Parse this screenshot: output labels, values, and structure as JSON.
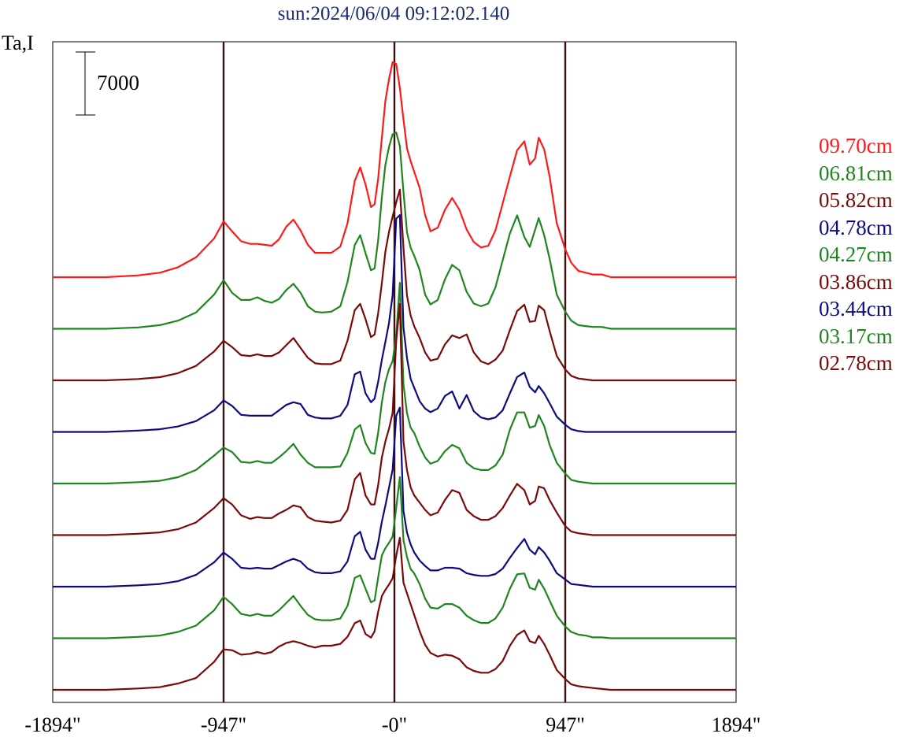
{
  "title": "sun:2024/06/04 09:12:02.140",
  "ylabel": "Ta,I",
  "scale_bar_label": "7000",
  "x_tick_labels": [
    "-1894\"",
    "-947\"",
    "-0\"",
    "947\"",
    "1894\""
  ],
  "colors": {
    "red": "#ff1a1a",
    "green": "#1f861f",
    "maroon": "#7a0a0a",
    "navy": "#0c0c80",
    "vline": "#3b1010",
    "frame": "#000000"
  },
  "chart_data": {
    "type": "line",
    "title": "sun:2024/06/04 09:12:02.140",
    "ylabel": "Ta,I",
    "xlim": [
      -1894,
      1894
    ],
    "x_ticks": [
      -1894,
      -947,
      0,
      947,
      1894
    ],
    "vertical_lines": [
      -947,
      0,
      947
    ],
    "scale_bar": 7000,
    "grid": false,
    "legend_position": "right",
    "x": [
      -1894,
      -1600,
      -1420,
      -1300,
      -1200,
      -1100,
      -1000,
      -947,
      -900,
      -850,
      -800,
      -760,
      -720,
      -680,
      -640,
      -600,
      -560,
      -520,
      -480,
      -440,
      -400,
      -350,
      -300,
      -260,
      -220,
      -190,
      -160,
      -130,
      -110,
      -90,
      -70,
      -50,
      -30,
      -10,
      10,
      30,
      50,
      70,
      90,
      110,
      140,
      170,
      200,
      240,
      280,
      320,
      360,
      400,
      440,
      480,
      520,
      560,
      600,
      640,
      680,
      720,
      750,
      780,
      800,
      830,
      860,
      900,
      947,
      980,
      1020,
      1060,
      1100,
      1150,
      1200,
      1300,
      1400,
      1894
    ],
    "series": [
      {
        "name": "09.70cm",
        "color": "red",
        "values": [
          0,
          0,
          200,
          500,
          1100,
          2200,
          4300,
          6200,
          5100,
          4000,
          3700,
          3700,
          3600,
          3500,
          4200,
          5600,
          6400,
          5200,
          3600,
          2700,
          2700,
          2700,
          3400,
          6000,
          10700,
          12200,
          10300,
          7800,
          8100,
          11000,
          15500,
          19600,
          22000,
          23900,
          23700,
          21000,
          17500,
          14300,
          12900,
          11700,
          9900,
          6900,
          5100,
          5500,
          7500,
          8800,
          7500,
          5300,
          3900,
          3300,
          3500,
          5200,
          8200,
          11200,
          14100,
          15100,
          12500,
          13200,
          15500,
          14200,
          11200,
          6000,
          3100,
          1600,
          700,
          500,
          300,
          300,
          0,
          0,
          0,
          0
        ]
      },
      {
        "name": "06.81cm",
        "color": "green",
        "values": [
          0,
          0,
          150,
          400,
          900,
          1800,
          3800,
          5400,
          4000,
          3200,
          3200,
          3500,
          3100,
          2900,
          3300,
          4300,
          5000,
          4000,
          2500,
          1900,
          1800,
          1900,
          2500,
          5200,
          9300,
          10400,
          8400,
          6500,
          6700,
          9900,
          14600,
          18200,
          20200,
          21600,
          21800,
          20300,
          15200,
          10700,
          9000,
          8100,
          6500,
          3800,
          2700,
          3200,
          5500,
          7100,
          6500,
          4100,
          2800,
          2500,
          2800,
          4600,
          7600,
          10600,
          12600,
          10200,
          9100,
          11000,
          12300,
          10400,
          7800,
          3800,
          1900,
          900,
          400,
          300,
          200,
          200,
          0,
          0,
          0,
          0
        ]
      },
      {
        "name": "05.82cm",
        "color": "maroon",
        "values": [
          0,
          0,
          150,
          350,
          800,
          1600,
          3200,
          4400,
          3700,
          2800,
          2700,
          2900,
          2700,
          2700,
          3100,
          3900,
          4700,
          3600,
          2500,
          1900,
          1800,
          1800,
          2200,
          4400,
          7800,
          8500,
          6800,
          4800,
          5100,
          7500,
          10800,
          14300,
          16500,
          18200,
          19800,
          21200,
          14700,
          9400,
          7200,
          6000,
          4700,
          3100,
          2200,
          2400,
          4000,
          5000,
          4700,
          5100,
          3100,
          2100,
          1800,
          2300,
          3300,
          5600,
          7700,
          8400,
          6500,
          6600,
          8300,
          7800,
          5500,
          2700,
          1200,
          500,
          200,
          100,
          0,
          0,
          0,
          0,
          0,
          0
        ]
      },
      {
        "name": "04.78cm",
        "color": "navy",
        "values": [
          0,
          0,
          150,
          300,
          600,
          1200,
          2400,
          3500,
          2900,
          1900,
          1800,
          1800,
          1800,
          1800,
          2400,
          3000,
          3300,
          3100,
          1900,
          1600,
          1500,
          1500,
          1800,
          3000,
          6400,
          6700,
          4300,
          3300,
          3700,
          5600,
          8000,
          10000,
          12100,
          15200,
          23700,
          24100,
          11600,
          8200,
          5900,
          4900,
          3400,
          2600,
          2200,
          2600,
          4000,
          4500,
          2600,
          4100,
          2300,
          1600,
          1400,
          1600,
          2400,
          4300,
          6100,
          6600,
          5000,
          4400,
          5100,
          4300,
          3200,
          1700,
          800,
          300,
          100,
          0,
          0,
          0,
          0,
          0,
          0,
          0
        ]
      },
      {
        "name": "04.27cm",
        "color": "green",
        "values": [
          0,
          0,
          150,
          300,
          700,
          1500,
          3100,
          4000,
          3500,
          2400,
          2300,
          2500,
          2300,
          2300,
          2900,
          3600,
          4400,
          3200,
          2300,
          1800,
          1800,
          1800,
          1900,
          3400,
          6000,
          6500,
          4500,
          3400,
          3300,
          5700,
          9000,
          11300,
          12700,
          13600,
          16500,
          22300,
          11000,
          7800,
          6200,
          5600,
          4100,
          2900,
          2200,
          2500,
          3600,
          4300,
          3900,
          2300,
          1700,
          1500,
          1500,
          2000,
          3200,
          6000,
          7900,
          7900,
          6200,
          6400,
          7600,
          6400,
          4300,
          2300,
          1100,
          400,
          200,
          100,
          0,
          0,
          0,
          0,
          0,
          0
        ]
      },
      {
        "name": "03.86cm",
        "color": "maroon",
        "values": [
          0,
          0,
          150,
          300,
          650,
          1400,
          3000,
          4100,
          3400,
          2200,
          1800,
          2000,
          1900,
          1900,
          2400,
          2800,
          3300,
          3100,
          2000,
          1600,
          1500,
          1400,
          1600,
          2800,
          6200,
          6900,
          4400,
          3400,
          3400,
          5600,
          8600,
          10400,
          11800,
          13600,
          21600,
          25700,
          10400,
          7200,
          5300,
          4400,
          3600,
          2800,
          2200,
          2500,
          3900,
          5000,
          4700,
          2800,
          2100,
          1700,
          1700,
          2100,
          3000,
          4400,
          5700,
          5000,
          3400,
          3800,
          5400,
          5200,
          3900,
          2500,
          1000,
          400,
          200,
          100,
          0,
          0,
          0,
          0,
          0,
          0
        ]
      },
      {
        "name": "03.44cm",
        "color": "navy",
        "values": [
          0,
          0,
          150,
          300,
          600,
          1300,
          2700,
          3800,
          3100,
          2100,
          2000,
          2100,
          2000,
          2000,
          2400,
          2800,
          3100,
          2800,
          2000,
          1600,
          1500,
          1500,
          1700,
          2800,
          5600,
          6100,
          4100,
          3100,
          3100,
          4900,
          7200,
          9000,
          11000,
          13000,
          19000,
          19900,
          8400,
          6000,
          4700,
          3800,
          2900,
          2300,
          1800,
          1800,
          2100,
          2100,
          2000,
          1500,
          1300,
          1200,
          1200,
          1400,
          2000,
          3200,
          4300,
          5300,
          4100,
          3600,
          4400,
          3800,
          2900,
          1500,
          800,
          300,
          200,
          100,
          0,
          0,
          0,
          0,
          0,
          0
        ]
      },
      {
        "name": "03.17cm",
        "color": "green",
        "values": [
          0,
          0,
          150,
          300,
          700,
          1400,
          3100,
          4600,
          3800,
          2700,
          2500,
          2700,
          2500,
          2500,
          3100,
          3900,
          4700,
          3600,
          2600,
          2100,
          2000,
          2000,
          2200,
          3600,
          6700,
          7000,
          5500,
          4000,
          4200,
          6800,
          9200,
          10000,
          10600,
          11300,
          14500,
          17900,
          10900,
          9000,
          7700,
          7200,
          6000,
          4400,
          3400,
          3300,
          3800,
          3800,
          3400,
          2500,
          2000,
          1700,
          1700,
          2200,
          3400,
          5500,
          7100,
          7200,
          5600,
          5400,
          6500,
          5500,
          4200,
          2500,
          1300,
          700,
          400,
          300,
          100,
          100,
          0,
          0,
          0,
          0
        ]
      },
      {
        "name": "02.78cm",
        "color": "maroon",
        "values": [
          0,
          0,
          150,
          300,
          700,
          1300,
          3100,
          4500,
          4400,
          3900,
          4000,
          4200,
          4000,
          4200,
          4800,
          5200,
          5400,
          5200,
          4900,
          4700,
          4900,
          4900,
          5100,
          5900,
          7400,
          7700,
          6200,
          5800,
          6500,
          8700,
          10400,
          11100,
          11700,
          12400,
          14900,
          16900,
          11900,
          10700,
          9500,
          8300,
          6500,
          5000,
          4100,
          3700,
          3900,
          3800,
          3400,
          2500,
          2100,
          1900,
          1900,
          2300,
          3200,
          4900,
          6100,
          6600,
          5400,
          5200,
          6000,
          5100,
          3900,
          2200,
          1200,
          600,
          400,
          300,
          200,
          100,
          0,
          0,
          0,
          0
        ]
      }
    ]
  }
}
